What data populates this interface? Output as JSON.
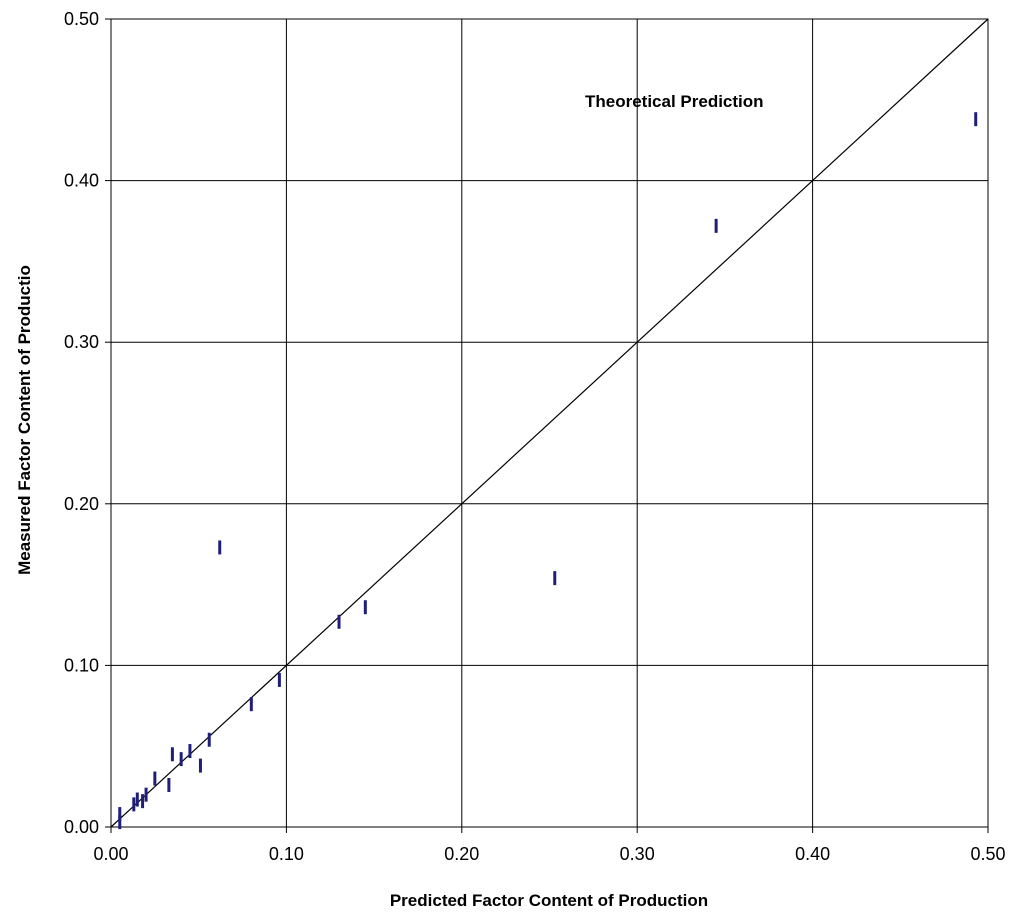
{
  "chart_data": {
    "type": "scatter",
    "title": "",
    "xlabel": "Predicted Factor Content of Production",
    "ylabel": "Measured Factor Content of Productio",
    "xlim": [
      0,
      0.5
    ],
    "ylim": [
      0,
      0.5
    ],
    "x_ticks": [
      "0.00",
      "0.10",
      "0.20",
      "0.30",
      "0.40",
      "0.50"
    ],
    "y_ticks": [
      "0.00",
      "0.10",
      "0.20",
      "0.30",
      "0.40",
      "0.50"
    ],
    "grid": true,
    "marker": "vertical-dash",
    "colors": {
      "points": "#1f1f7a",
      "line": "#000000",
      "grid": "#000000"
    },
    "reference_line": {
      "label": "Theoretical Prediction",
      "from": [
        0,
        0
      ],
      "to": [
        0.5,
        0.5
      ]
    },
    "points": [
      {
        "x": 0.005,
        "y": 0.003
      },
      {
        "x": 0.005,
        "y": 0.008
      },
      {
        "x": 0.013,
        "y": 0.014
      },
      {
        "x": 0.015,
        "y": 0.017
      },
      {
        "x": 0.018,
        "y": 0.016
      },
      {
        "x": 0.02,
        "y": 0.02
      },
      {
        "x": 0.025,
        "y": 0.03
      },
      {
        "x": 0.033,
        "y": 0.026
      },
      {
        "x": 0.035,
        "y": 0.045
      },
      {
        "x": 0.04,
        "y": 0.042
      },
      {
        "x": 0.045,
        "y": 0.047
      },
      {
        "x": 0.051,
        "y": 0.038
      },
      {
        "x": 0.056,
        "y": 0.054
      },
      {
        "x": 0.062,
        "y": 0.173
      },
      {
        "x": 0.08,
        "y": 0.076
      },
      {
        "x": 0.096,
        "y": 0.091
      },
      {
        "x": 0.13,
        "y": 0.127
      },
      {
        "x": 0.145,
        "y": 0.136
      },
      {
        "x": 0.253,
        "y": 0.154
      },
      {
        "x": 0.345,
        "y": 0.372
      },
      {
        "x": 0.493,
        "y": 0.438
      }
    ]
  }
}
